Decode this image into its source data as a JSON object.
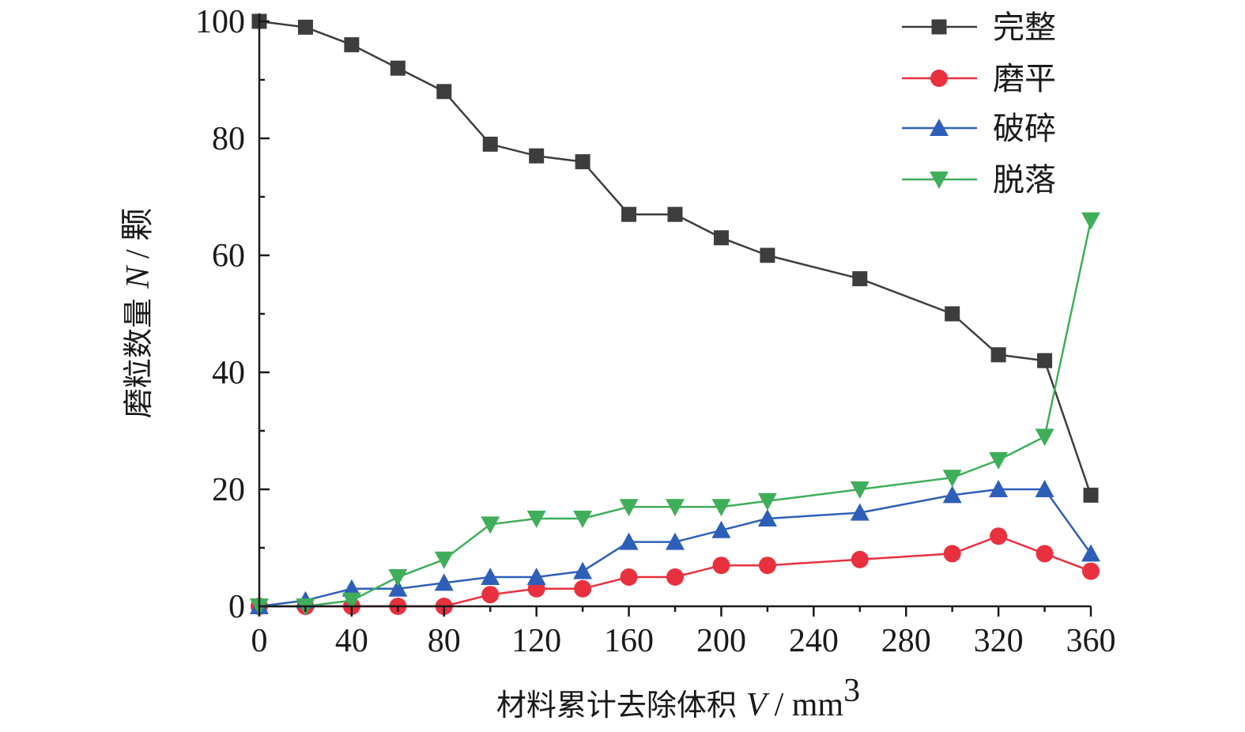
{
  "chart_data": {
    "type": "line",
    "title": "",
    "xlabel": {
      "text": "材料累计去除体积",
      "var": "V",
      "unit": "/ mm",
      "sup": "3"
    },
    "ylabel": {
      "text": "磨粒数量",
      "var": "N",
      "unit": "/ 颗"
    },
    "xlim": [
      0,
      360
    ],
    "ylim": [
      0,
      100
    ],
    "xticks": [
      0,
      40,
      80,
      120,
      160,
      200,
      240,
      280,
      320,
      360
    ],
    "yticks": [
      0,
      20,
      40,
      60,
      80,
      100
    ],
    "grid": false,
    "legend_position": "top-right",
    "x": [
      0,
      20,
      40,
      60,
      80,
      100,
      120,
      140,
      160,
      180,
      200,
      220,
      260,
      300,
      320,
      340,
      360
    ],
    "series": [
      {
        "name": "完整",
        "color": "#3d3d3d",
        "marker": "square",
        "values": [
          100,
          99,
          96,
          92,
          88,
          79,
          77,
          76,
          67,
          67,
          63,
          60,
          56,
          50,
          43,
          42,
          19
        ]
      },
      {
        "name": "磨平",
        "color": "#e8303f",
        "marker": "circle",
        "values": [
          0,
          0,
          0,
          0,
          0,
          2,
          3,
          3,
          5,
          5,
          7,
          7,
          8,
          9,
          12,
          9,
          6
        ]
      },
      {
        "name": "破碎",
        "color": "#2e5fb8",
        "marker": "triangle-up",
        "values": [
          0,
          1,
          3,
          3,
          4,
          5,
          5,
          6,
          11,
          11,
          13,
          15,
          16,
          19,
          20,
          20,
          9
        ]
      },
      {
        "name": "脱落",
        "color": "#3fae5a",
        "marker": "triangle-down",
        "values": [
          0,
          0,
          1,
          5,
          8,
          14,
          15,
          15,
          17,
          17,
          17,
          18,
          20,
          22,
          25,
          29,
          66
        ]
      }
    ]
  }
}
